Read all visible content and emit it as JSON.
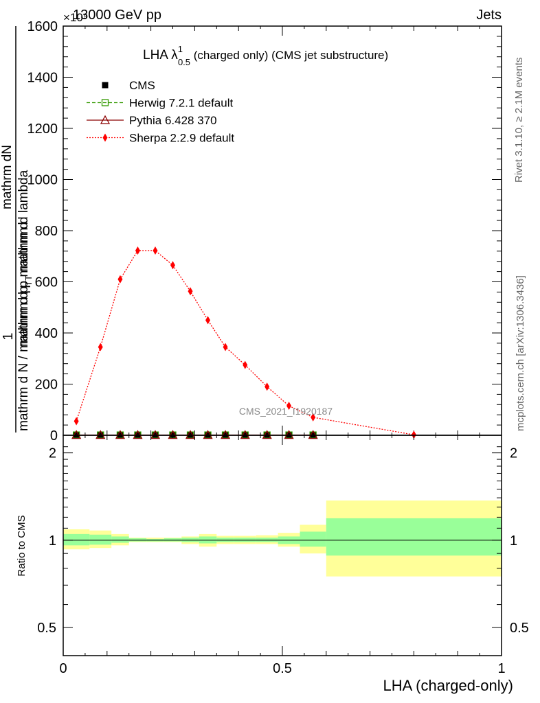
{
  "header": {
    "left": "13000 GeV pp",
    "right": "Jets",
    "exponent": "×10⁹"
  },
  "side_labels": {
    "rivet": "Rivet 3.1.10, ≥ 2.1M events",
    "mcplots": "mcplots.cern.ch [arXiv:1306.3436]"
  },
  "colors": {
    "cms": "#000000",
    "herwig": "#339900",
    "pythia": "#8b0000",
    "sherpa": "#ff0000",
    "band_inner": "#99ff99",
    "band_outer": "#ffff99"
  },
  "chart_data": [
    {
      "type": "line",
      "panel": "main",
      "title_main": "LHA λ",
      "title_sup": "1",
      "title_sub": "0.5",
      "title_rest": " (charged only) (CMS jet substructure)",
      "watermark": "CMS_2021_I1920187",
      "ylabel_top": "1",
      "ylabel_num": "mathrm dN",
      "ylabel_den": "mathrm d N / mathrm d p",
      "ylabel_den_sub": "T",
      "ylabel_num_rest": "mathrm d p",
      "ylabel_num_sub": "T",
      "ylabel_num_tail": " mathrm d lambda",
      "ylabel_den_tail": " mathrm d",
      "xlim": [
        0,
        1
      ],
      "ylim": [
        0,
        1600
      ],
      "yticks": [
        0,
        200,
        400,
        600,
        800,
        1000,
        1200,
        1400,
        1600
      ],
      "yticklabels": [
        "0",
        "200",
        "400",
        "600",
        "800",
        "1000",
        "1200",
        "1400",
        "1600"
      ],
      "legend_position": "top-left",
      "series": [
        {
          "name": "CMS",
          "marker": "filled-square",
          "x": [
            0.03,
            0.085,
            0.13,
            0.17,
            0.21,
            0.25,
            0.29,
            0.33,
            0.37,
            0.415,
            0.465,
            0.515,
            0.57
          ],
          "y": [
            1,
            1,
            1,
            1,
            1,
            1,
            1,
            1,
            1,
            1,
            1,
            1,
            1
          ]
        },
        {
          "name": "Herwig 7.2.1 default",
          "marker": "open-square",
          "x": [
            0.03,
            0.085,
            0.13,
            0.17,
            0.21,
            0.25,
            0.29,
            0.33,
            0.37,
            0.415,
            0.465,
            0.515,
            0.57
          ],
          "y": [
            1,
            1,
            1,
            1,
            1,
            1,
            1,
            1,
            1,
            1,
            1,
            1,
            1
          ]
        },
        {
          "name": "Pythia 6.428 370",
          "marker": "open-triangle",
          "x": [
            0.03,
            0.085,
            0.13,
            0.17,
            0.21,
            0.25,
            0.29,
            0.33,
            0.37,
            0.415,
            0.465,
            0.515,
            0.57
          ],
          "y": [
            1,
            1,
            1,
            1,
            1,
            1,
            1,
            1,
            1,
            1,
            1,
            1,
            1
          ]
        },
        {
          "name": "Sherpa 2.2.9 default",
          "marker": "filled-diamond",
          "x": [
            0.03,
            0.085,
            0.13,
            0.17,
            0.21,
            0.25,
            0.29,
            0.33,
            0.37,
            0.415,
            0.465,
            0.515,
            0.57,
            0.8
          ],
          "y": [
            55,
            345,
            610,
            722,
            722,
            665,
            563,
            450,
            345,
            275,
            190,
            115,
            70,
            2
          ]
        }
      ]
    },
    {
      "type": "area",
      "panel": "ratio",
      "ylabel": "Ratio to CMS",
      "xlabel": "LHA (charged-only)",
      "xlim": [
        0,
        1
      ],
      "ylim": [
        0.4,
        2.3
      ],
      "log_y": true,
      "xticks": [
        0,
        0.5,
        1
      ],
      "xticklabels": [
        "0",
        "0.5",
        "1"
      ],
      "yticks": [
        0.5,
        1,
        2
      ],
      "yticklabels": [
        "0.5",
        "1",
        "2"
      ],
      "bins": [
        {
          "xlo": 0.0,
          "xhi": 0.06,
          "inner": [
            0.96,
            1.05
          ],
          "outer": [
            0.93,
            1.09
          ]
        },
        {
          "xlo": 0.06,
          "xhi": 0.11,
          "inner": [
            0.965,
            1.045
          ],
          "outer": [
            0.94,
            1.08
          ]
        },
        {
          "xlo": 0.11,
          "xhi": 0.15,
          "inner": [
            0.98,
            1.03
          ],
          "outer": [
            0.96,
            1.05
          ]
        },
        {
          "xlo": 0.15,
          "xhi": 0.19,
          "inner": [
            0.99,
            1.015
          ],
          "outer": [
            0.985,
            1.02
          ]
        },
        {
          "xlo": 0.19,
          "xhi": 0.23,
          "inner": [
            0.99,
            1.01
          ],
          "outer": [
            0.985,
            1.02
          ]
        },
        {
          "xlo": 0.23,
          "xhi": 0.27,
          "inner": [
            0.99,
            1.015
          ],
          "outer": [
            0.985,
            1.02
          ]
        },
        {
          "xlo": 0.27,
          "xhi": 0.31,
          "inner": [
            0.985,
            1.02
          ],
          "outer": [
            0.97,
            1.03
          ]
        },
        {
          "xlo": 0.31,
          "xhi": 0.35,
          "inner": [
            0.975,
            1.03
          ],
          "outer": [
            0.95,
            1.05
          ]
        },
        {
          "xlo": 0.35,
          "xhi": 0.39,
          "inner": [
            0.985,
            1.02
          ],
          "outer": [
            0.97,
            1.035
          ]
        },
        {
          "xlo": 0.39,
          "xhi": 0.44,
          "inner": [
            0.985,
            1.02
          ],
          "outer": [
            0.97,
            1.035
          ]
        },
        {
          "xlo": 0.44,
          "xhi": 0.49,
          "inner": [
            0.985,
            1.02
          ],
          "outer": [
            0.97,
            1.04
          ]
        },
        {
          "xlo": 0.49,
          "xhi": 0.54,
          "inner": [
            0.97,
            1.03
          ],
          "outer": [
            0.95,
            1.06
          ]
        },
        {
          "xlo": 0.54,
          "xhi": 0.6,
          "inner": [
            0.95,
            1.07
          ],
          "outer": [
            0.9,
            1.13
          ]
        },
        {
          "xlo": 0.6,
          "xhi": 1.0,
          "inner": [
            0.885,
            1.19
          ],
          "outer": [
            0.75,
            1.37
          ]
        }
      ]
    }
  ]
}
